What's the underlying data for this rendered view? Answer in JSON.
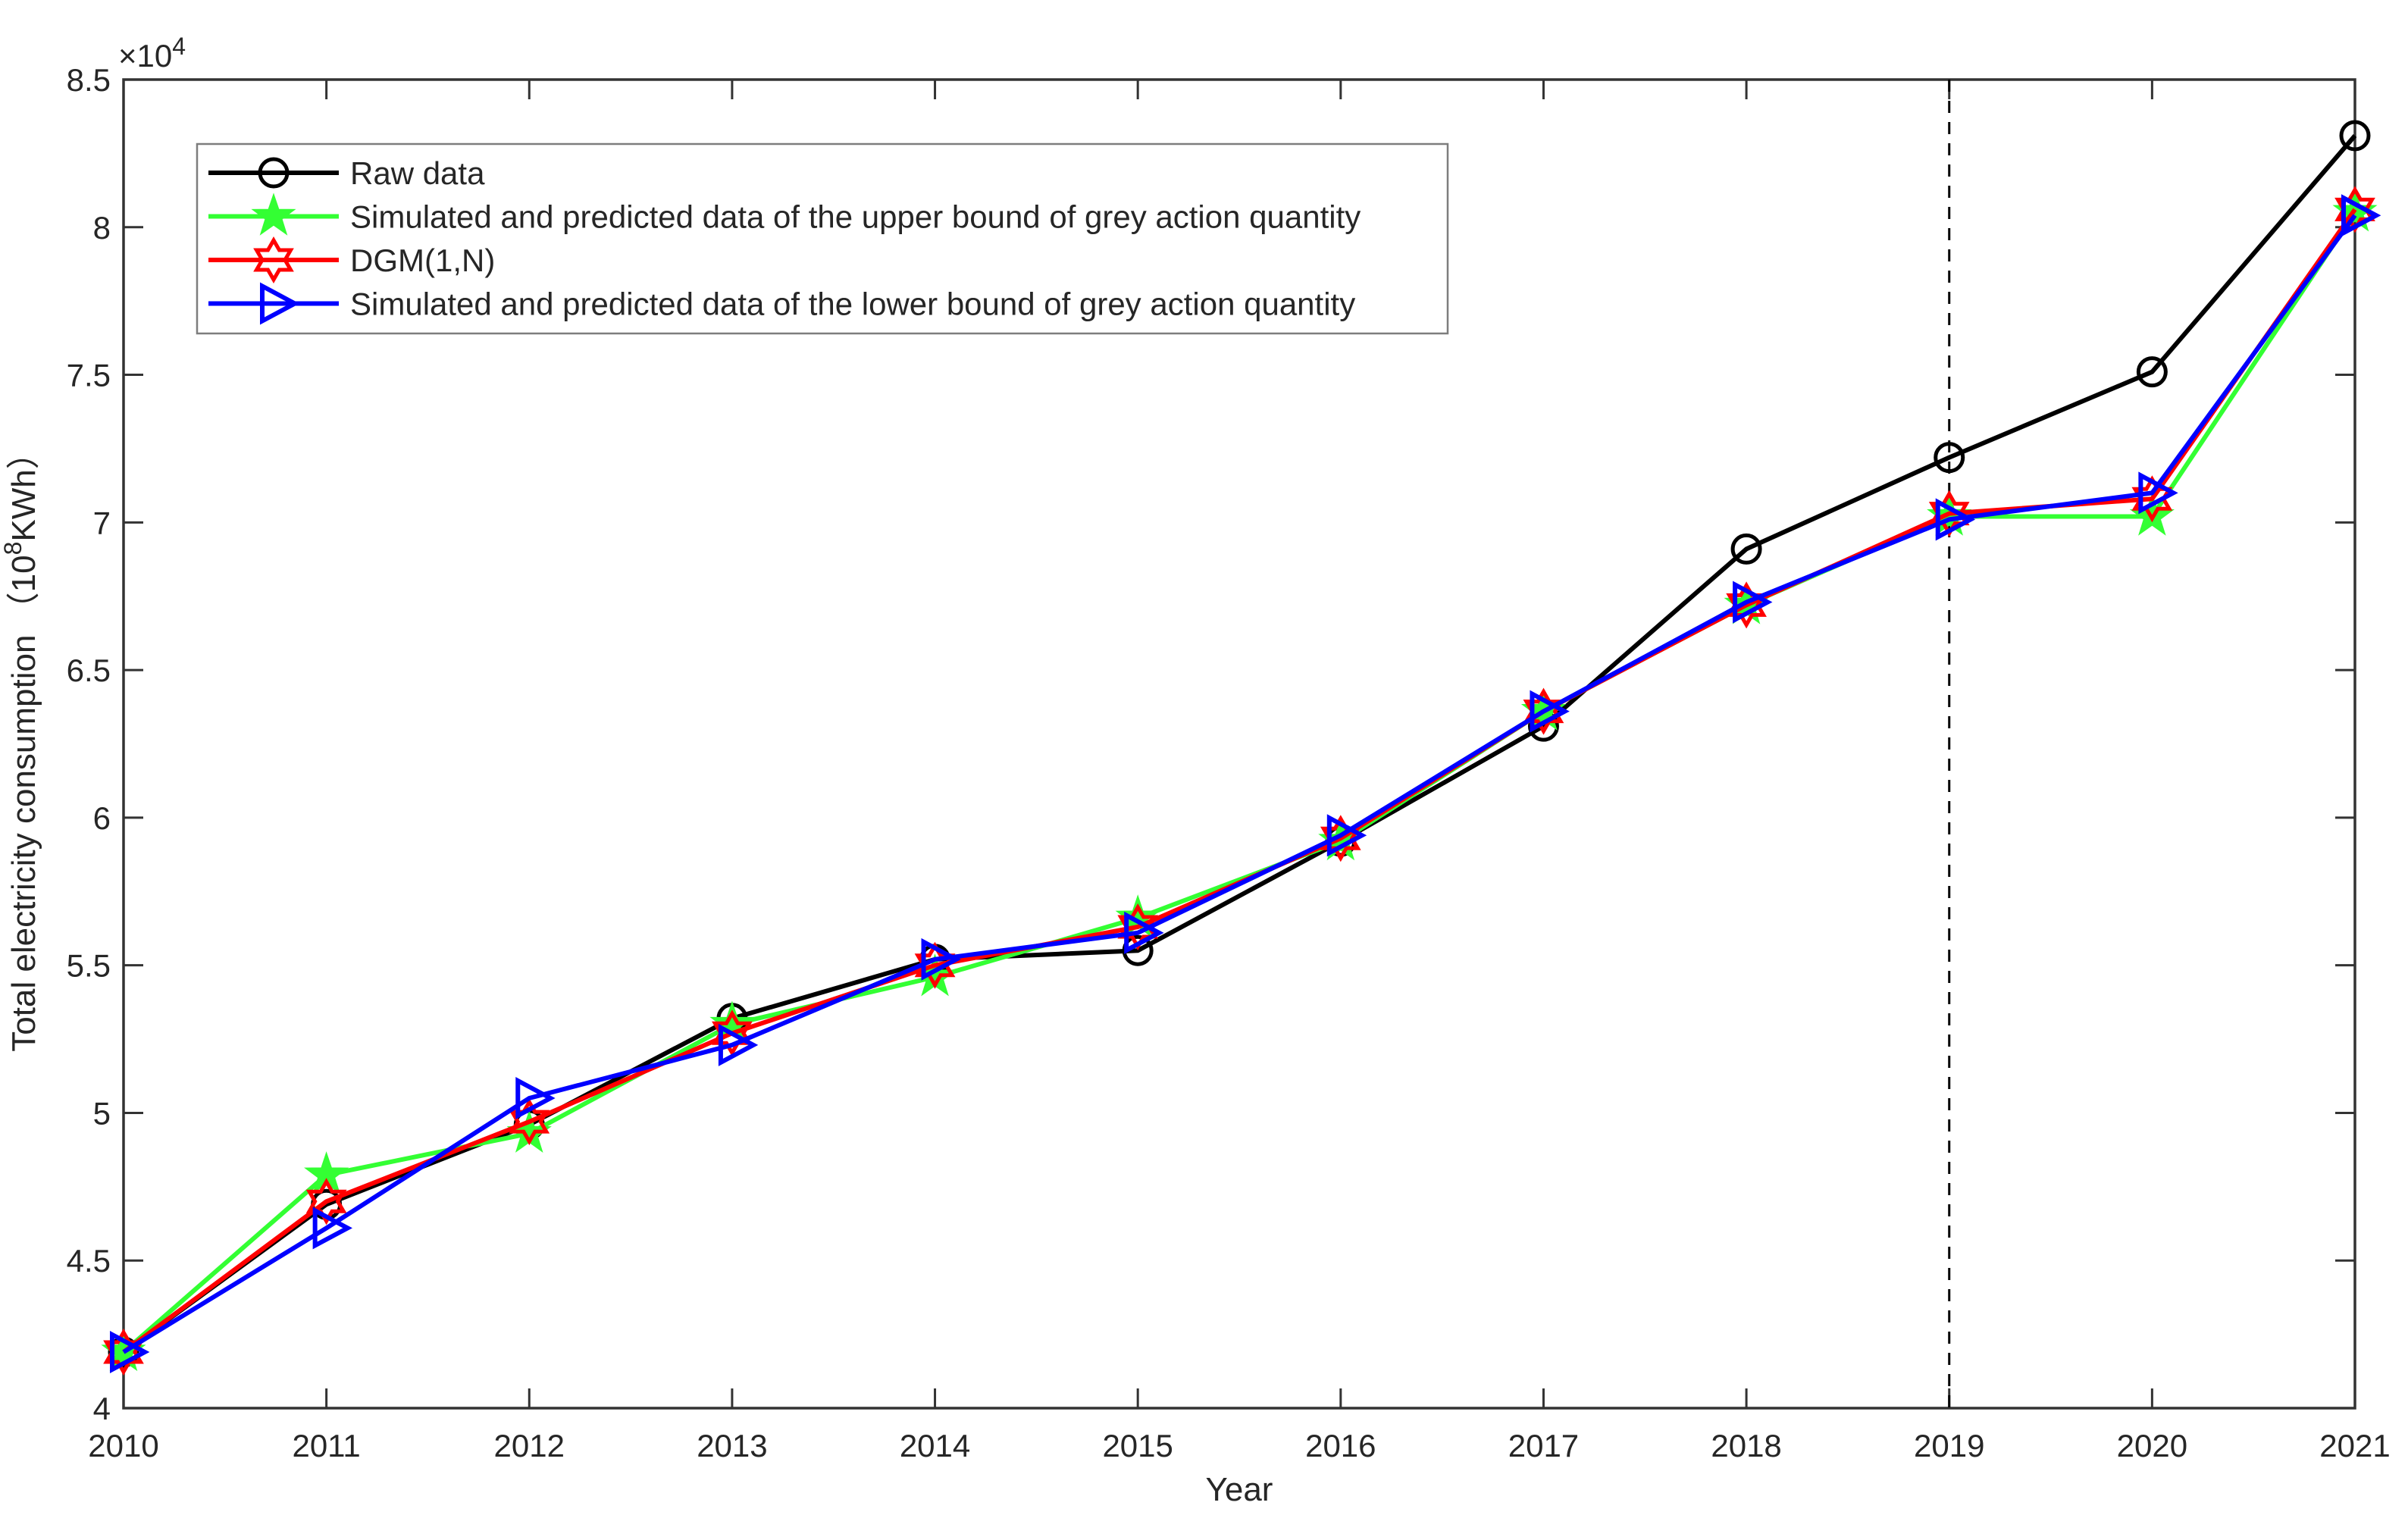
{
  "figure": {
    "exponent_prefix": "×10",
    "exponent_sup": "4",
    "ylabel_prefix": "Total electricity consumption （10",
    "ylabel_sup": "8",
    "ylabel_suffix": "KWh）",
    "xlabel": "Year"
  },
  "chart_data": {
    "type": "line",
    "x": [
      2010,
      2011,
      2012,
      2013,
      2014,
      2015,
      2016,
      2017,
      2018,
      2019,
      2020,
      2021
    ],
    "xtick_labels": [
      "2010",
      "2011",
      "2012",
      "2013",
      "2014",
      "2015",
      "2016",
      "2017",
      "2018",
      "2019",
      "2020",
      "2021"
    ],
    "yticks": [
      4,
      4.5,
      5,
      5.5,
      6,
      6.5,
      7,
      7.5,
      8,
      8.5
    ],
    "ytick_labels": [
      "4",
      "4.5",
      "5",
      "5.5",
      "6",
      "6.5",
      "7",
      "7.5",
      "8",
      "8.5"
    ],
    "ylim": [
      4,
      8.5
    ],
    "xlim": [
      2010,
      2021
    ],
    "y_scale_exponent": "×10^4",
    "xlabel": "Year",
    "ylabel": "Total electricity consumption （10^8KWh）",
    "grid": false,
    "legend_position": "top-left",
    "annotation_vline": {
      "x": 2019,
      "style": "dashed",
      "color": "#000000"
    },
    "series": [
      {
        "name": "Raw data",
        "color": "#000000",
        "marker": "circle",
        "values": [
          4.19,
          4.69,
          4.96,
          5.32,
          5.52,
          5.55,
          5.92,
          6.31,
          6.91,
          7.22,
          7.51,
          8.31
        ]
      },
      {
        "name": "Simulated and predicted data of the upper bound of grey action quantity",
        "color": "#33ff33",
        "marker": "pentagram",
        "values": [
          4.19,
          4.79,
          4.93,
          5.3,
          5.46,
          5.66,
          5.92,
          6.36,
          6.72,
          7.02,
          7.02,
          8.05
        ]
      },
      {
        "name": "DGM(1,N)",
        "color": "#ff0000",
        "marker": "hexagram",
        "values": [
          4.19,
          4.7,
          4.97,
          5.27,
          5.5,
          5.63,
          5.93,
          6.36,
          6.72,
          7.03,
          7.08,
          8.06
        ]
      },
      {
        "name": "Simulated and predicted data of the lower bound of grey action quantity",
        "color": "#0000ff",
        "marker": "triangle-right",
        "values": [
          4.19,
          4.61,
          5.05,
          5.23,
          5.52,
          5.61,
          5.94,
          6.36,
          6.73,
          7.01,
          7.1,
          8.04
        ]
      }
    ]
  }
}
